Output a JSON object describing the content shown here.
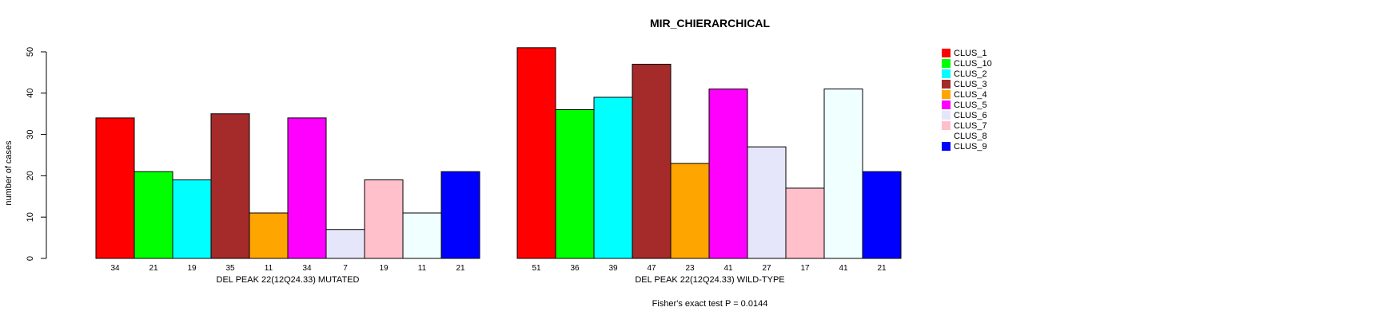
{
  "chart_data": {
    "type": "bar",
    "title": "MIR_CHIERARCHICAL",
    "ylabel": "number of cases",
    "ylim": [
      0,
      50
    ],
    "yticks": [
      0,
      10,
      20,
      30,
      40,
      50
    ],
    "footer": "Fisher's exact test P = 0.0144",
    "categories": [
      "CLUS_1",
      "CLUS_10",
      "CLUS_2",
      "CLUS_3",
      "CLUS_4",
      "CLUS_5",
      "CLUS_6",
      "CLUS_7",
      "CLUS_8",
      "CLUS_9"
    ],
    "colors": [
      "#FF0000",
      "#00FF00",
      "#00FFFF",
      "#A52A2A",
      "#FFA500",
      "#FF00FF",
      "#E6E6FA",
      "#FFC0CB",
      "#F0FFFF",
      "#0000FF"
    ],
    "panels": [
      {
        "xlabel": "DEL PEAK 22(12Q24.33) MUTATED",
        "values": [
          34,
          21,
          19,
          35,
          11,
          34,
          7,
          19,
          11,
          21
        ]
      },
      {
        "xlabel": "DEL PEAK 22(12Q24.33) WILD-TYPE",
        "values": [
          51,
          36,
          39,
          47,
          23,
          41,
          27,
          17,
          41,
          21
        ]
      }
    ],
    "legend": {
      "position": "right",
      "entries": [
        "CLUS_1",
        "CLUS_10",
        "CLUS_2",
        "CLUS_3",
        "CLUS_4",
        "CLUS_5",
        "CLUS_6",
        "CLUS_7",
        "CLUS_8",
        "CLUS_9"
      ]
    }
  }
}
